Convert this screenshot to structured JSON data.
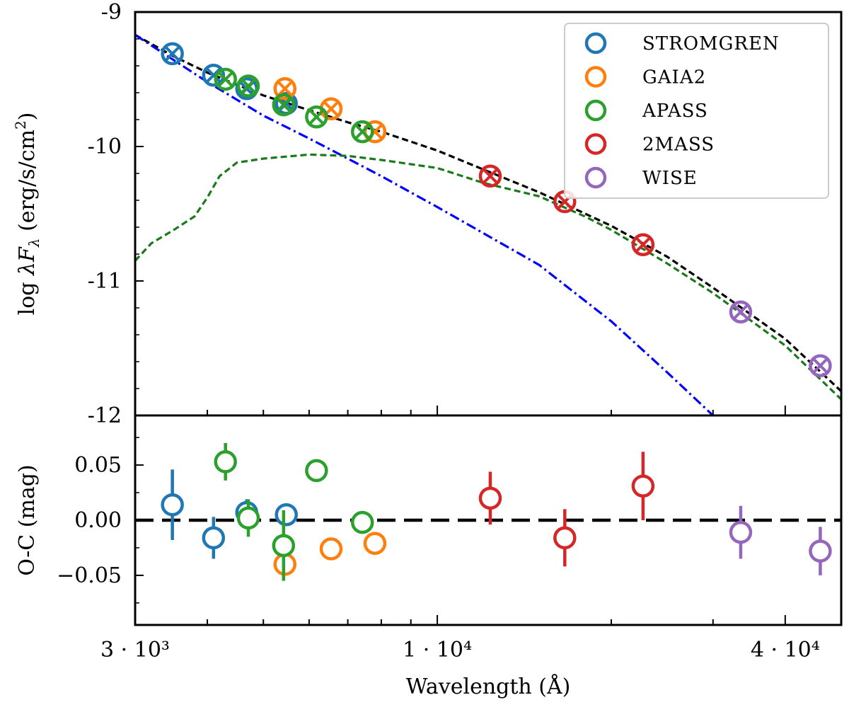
{
  "chart_data": {
    "type": "scatter",
    "x_scale": "log",
    "xlim": [
      3000,
      50000
    ],
    "xlabel": "Wavelength (Å)",
    "xticks": [
      {
        "value": 3000,
        "label": "3 · 10³"
      },
      {
        "value": 10000,
        "label": "1 · 10⁴"
      },
      {
        "value": 40000,
        "label": "4 · 10⁴"
      }
    ],
    "top_panel": {
      "ylabel": "log λF_λ (erg/s/cm²)",
      "ylabel_parts": {
        "log": "log",
        "lambda": "λ",
        "F": "F",
        "sub": "λ",
        "units": "(erg/s/cm",
        "sup": "2",
        "close": ")"
      },
      "ylim": [
        -12,
        -9
      ],
      "yticks": [
        "-9",
        "-10",
        "-11",
        "-12"
      ],
      "legend": [
        {
          "name": "STROMGREN",
          "color": "#1f77b4"
        },
        {
          "name": "GAIA2",
          "color": "#ff7f0e"
        },
        {
          "name": "APASS",
          "color": "#2ca02c"
        },
        {
          "name": "2MASS",
          "color": "#d62728"
        },
        {
          "name": "WISE",
          "color": "#9467bd"
        }
      ],
      "series": [
        {
          "name": "STROMGREN",
          "color": "#1f77b4",
          "points": [
            [
              3480,
              -9.31
            ],
            [
              4100,
              -9.47
            ],
            [
              4680,
              -9.57
            ],
            [
              5480,
              -9.68
            ]
          ]
        },
        {
          "name": "GAIA2",
          "color": "#ff7f0e",
          "points": [
            [
              5450,
              -9.57
            ],
            [
              6550,
              -9.72
            ],
            [
              7800,
              -9.89
            ]
          ]
        },
        {
          "name": "APASS",
          "color": "#2ca02c",
          "points": [
            [
              4300,
              -9.5
            ],
            [
              4710,
              -9.55
            ],
            [
              5420,
              -9.69
            ],
            [
              6180,
              -9.78
            ],
            [
              7420,
              -9.89
            ]
          ]
        },
        {
          "name": "2MASS",
          "color": "#d62728",
          "points": [
            [
              12350,
              -10.22
            ],
            [
              16620,
              -10.41
            ],
            [
              22700,
              -10.73
            ]
          ]
        },
        {
          "name": "WISE",
          "color": "#9467bd",
          "points": [
            [
              33500,
              -11.23
            ],
            [
              46000,
              -11.63
            ]
          ]
        }
      ],
      "model_lines": [
        {
          "name": "total model",
          "color": "#000000",
          "style": "dashed",
          "x": [
            3000,
            3500,
            4000,
            5000,
            6000,
            7000,
            8000,
            10000,
            12000,
            15000,
            20000,
            25000,
            30000,
            40000,
            50000
          ],
          "y": [
            -9.17,
            -9.33,
            -9.45,
            -9.62,
            -9.73,
            -9.82,
            -9.89,
            -10.03,
            -10.17,
            -10.34,
            -10.59,
            -10.82,
            -11.05,
            -11.43,
            -11.82
          ]
        },
        {
          "name": "hot component",
          "color": "#0000ff",
          "style": "dashdot",
          "x": [
            3000,
            4000,
            5000,
            6000,
            8000,
            10000,
            15000,
            20000,
            25000,
            30000
          ],
          "y": [
            -9.17,
            -9.52,
            -9.77,
            -9.94,
            -10.22,
            -10.45,
            -10.88,
            -11.3,
            -11.68,
            -12.0
          ]
        },
        {
          "name": "cool component",
          "color": "#1a7a1a",
          "style": "dashed",
          "x": [
            3000,
            3200,
            3500,
            3800,
            4000,
            4200,
            4500,
            5000,
            6000,
            7000,
            8000,
            10000,
            12000,
            15000,
            18000,
            20000,
            25000,
            30000,
            40000,
            50000
          ],
          "y": [
            -10.85,
            -10.72,
            -10.62,
            -10.52,
            -10.38,
            -10.22,
            -10.12,
            -10.09,
            -10.06,
            -10.07,
            -10.1,
            -10.16,
            -10.27,
            -10.37,
            -10.52,
            -10.62,
            -10.87,
            -11.09,
            -11.48,
            -11.88
          ]
        }
      ]
    },
    "bottom_panel": {
      "ylabel": "O-C (mag)",
      "ylim": [
        -0.095,
        0.095
      ],
      "yticks": [
        {
          "value": 0.05,
          "label": "0.05"
        },
        {
          "value": 0.0,
          "label": "0.00"
        },
        {
          "value": -0.05,
          "label": "−0.05"
        }
      ],
      "zero_line": 0.0,
      "series": [
        {
          "name": "STROMGREN",
          "color": "#1f77b4",
          "points": [
            [
              3480,
              0.014,
              0.032
            ],
            [
              4100,
              -0.016,
              0.019
            ],
            [
              4680,
              0.007,
              0.012
            ],
            [
              5480,
              0.005,
              0.008
            ]
          ]
        },
        {
          "name": "GAIA2",
          "color": "#ff7f0e",
          "points": [
            [
              5450,
              -0.04,
              0.008
            ],
            [
              6550,
              -0.026,
              0.006
            ],
            [
              7800,
              -0.021,
              0.006
            ]
          ]
        },
        {
          "name": "APASS",
          "color": "#2ca02c",
          "points": [
            [
              4300,
              0.053,
              0.017
            ],
            [
              4710,
              0.002,
              0.017
            ],
            [
              5420,
              -0.023,
              0.032
            ],
            [
              6180,
              0.045,
              0.006
            ],
            [
              7420,
              -0.002,
              0.007
            ]
          ]
        },
        {
          "name": "2MASS",
          "color": "#d62728",
          "points": [
            [
              12350,
              0.02,
              0.024
            ],
            [
              16620,
              -0.016,
              0.026
            ],
            [
              22700,
              0.031,
              0.031
            ]
          ]
        },
        {
          "name": "WISE",
          "color": "#9467bd",
          "points": [
            [
              33500,
              -0.011,
              0.024
            ],
            [
              46000,
              -0.028,
              0.022
            ]
          ]
        }
      ]
    }
  }
}
